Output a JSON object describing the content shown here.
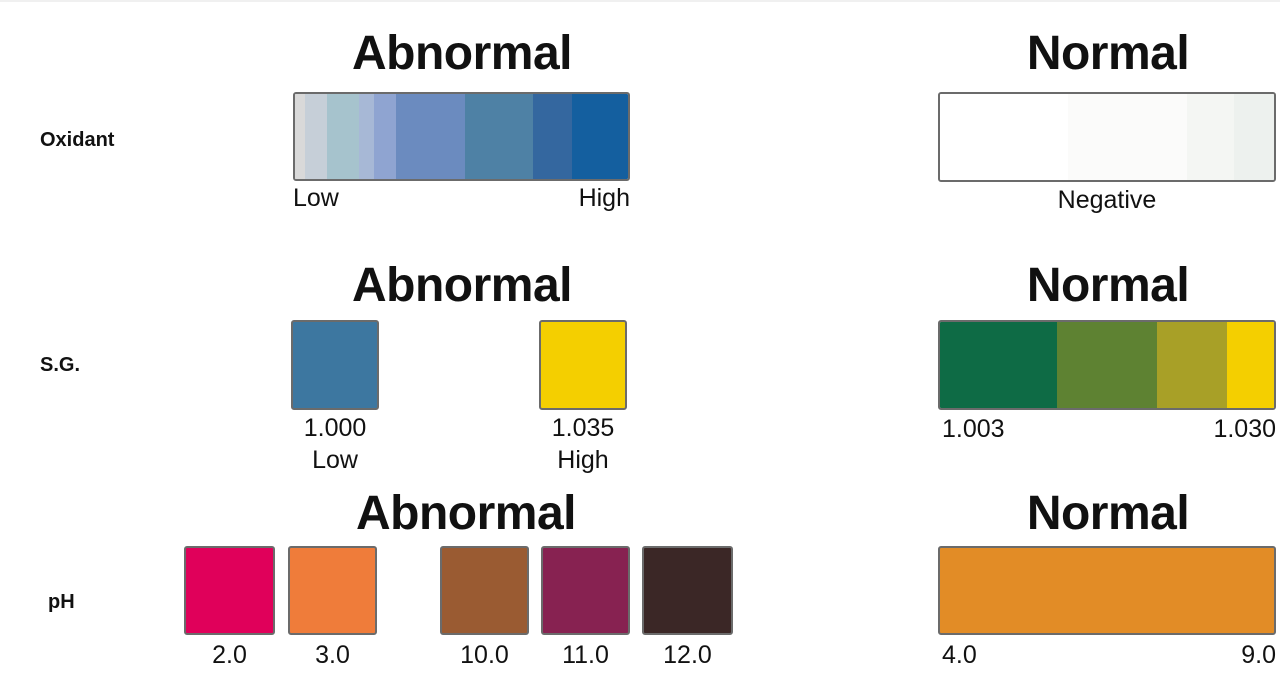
{
  "oxidant": {
    "label": "Oxidant",
    "abnormal": {
      "heading": "Abnormal",
      "gradient": [
        "#d9d9d9",
        "#c6cfd8",
        "#a6c3cd",
        "#a7b8d6",
        "#8fa4d1",
        "#6b8bbf",
        "#4e81a5",
        "#34679f",
        "#145f9f"
      ],
      "low": "Low",
      "high": "High"
    },
    "normal": {
      "heading": "Normal",
      "gradient": [
        "#ffffff",
        "#fbfbfa",
        "#f4f6f3",
        "#edf1ee"
      ],
      "negative": "Negative"
    }
  },
  "sg": {
    "label": "S.G.",
    "abnormal": {
      "heading": "Abnormal",
      "swatches": [
        {
          "color": "#3d77a0",
          "value": "1.000",
          "level": "Low"
        },
        {
          "color": "#f4cf00",
          "value": "1.035",
          "level": "High"
        }
      ]
    },
    "normal": {
      "heading": "Normal",
      "gradient": [
        "#0e6b45",
        "#5e8232",
        "#a8a027",
        "#f4cf00"
      ],
      "min": "1.003",
      "max": "1.030"
    }
  },
  "ph": {
    "label": "pH",
    "abnormal": {
      "heading": "Abnormal",
      "swatches": [
        {
          "color": "#e0005a",
          "value": "2.0"
        },
        {
          "color": "#ef7c3a",
          "value": "3.0"
        },
        {
          "color": "#9a5b32",
          "value": "10.0"
        },
        {
          "color": "#872251",
          "value": "11.0"
        },
        {
          "color": "#3b2726",
          "value": "12.0"
        }
      ]
    },
    "normal": {
      "heading": "Normal",
      "color": "#e28c26",
      "min": "4.0",
      "max": "9.0"
    }
  }
}
